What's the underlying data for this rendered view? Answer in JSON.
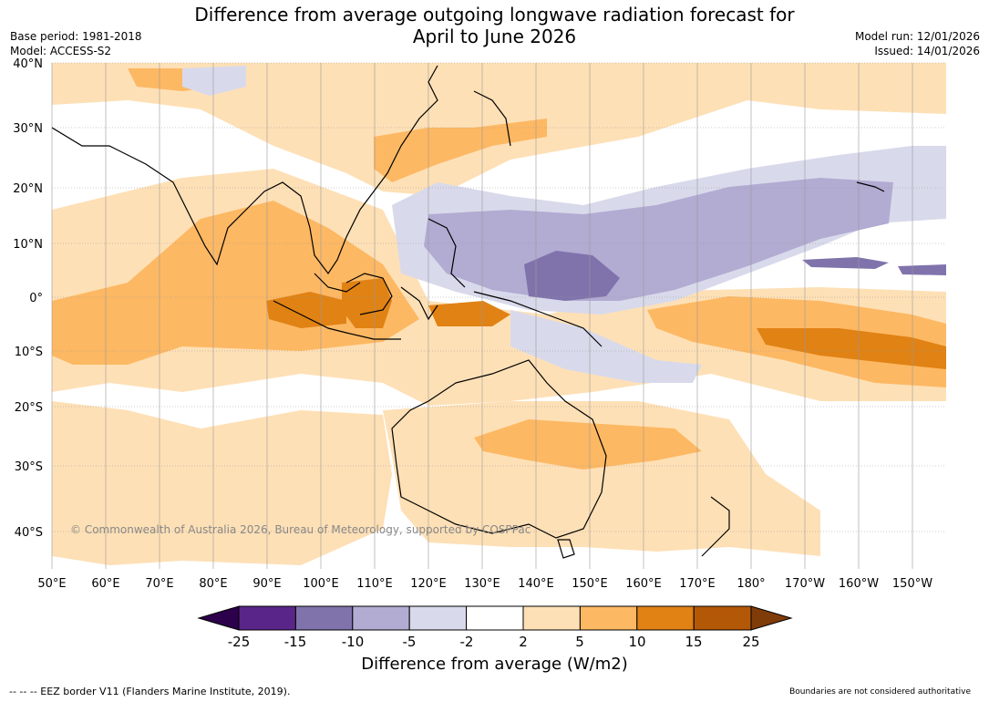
{
  "title": {
    "line1": "Difference from average outgoing longwave radiation forecast for",
    "line2": "April to June 2026"
  },
  "meta_left": {
    "base_period": "Base period: 1981-2018",
    "model": "Model: ACCESS-S2"
  },
  "meta_right": {
    "model_run": "Model run: 12/01/2026",
    "issued": "Issued: 14/01/2026"
  },
  "map": {
    "lon_labels": [
      "50°E",
      "60°E",
      "70°E",
      "80°E",
      "90°E",
      "100°E",
      "110°E",
      "120°E",
      "130°E",
      "140°E",
      "150°E",
      "160°E",
      "170°E",
      "180°",
      "170°W",
      "160°W",
      "150°W"
    ],
    "lat_labels": [
      "40°N",
      "30°N",
      "20°N",
      "10°N",
      "0°",
      "10°S",
      "20°S",
      "30°S",
      "40°S"
    ],
    "copyright": "© Commonwealth of Australia 2026, Bureau of Meteorology, supported by COSPPac"
  },
  "colorbar": {
    "ticks": [
      "-25",
      "-15",
      "-10",
      "-5",
      "-2",
      "2",
      "5",
      "10",
      "15",
      "25"
    ],
    "colors": [
      "#5a2588",
      "#8073ac",
      "#b2abd2",
      "#d8daeb",
      "#ffffff",
      "#fee0b6",
      "#fdb863",
      "#e08214",
      "#b35806"
    ],
    "under_color": "#2d004b",
    "over_color": "#7f3b08",
    "label": "Difference from average (W/m2)"
  },
  "footer": {
    "eez": "--  --  -- EEZ border V11 (Flanders Marine Institute, 2019).",
    "disclaimer": "Boundaries are not considered authoritative"
  }
}
